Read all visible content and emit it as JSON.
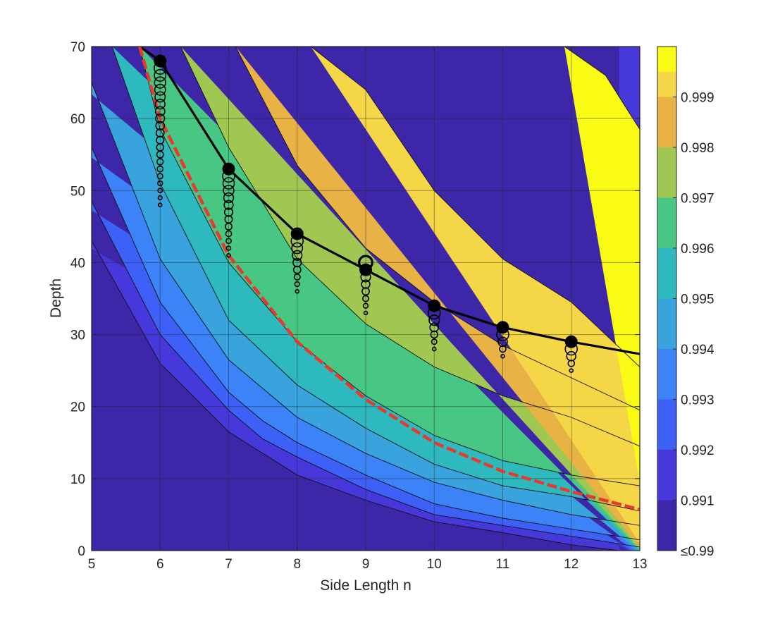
{
  "chart_data": {
    "type": "contour",
    "xlabel": "Side Length n",
    "ylabel": "Depth",
    "xlim": [
      5,
      13
    ],
    "ylim": [
      0,
      70
    ],
    "xticks": [
      "5",
      "6",
      "7",
      "8",
      "9",
      "10",
      "11",
      "12",
      "13"
    ],
    "yticks": [
      "0",
      "10",
      "20",
      "30",
      "40",
      "50",
      "60",
      "70"
    ],
    "grid": true,
    "colorbar": {
      "ticks": [
        "≤0.99",
        "0.991",
        "0.992",
        "0.993",
        "0.994",
        "0.995",
        "0.996",
        "0.997",
        "0.998",
        "0.999"
      ],
      "colors": [
        "#3d26a8",
        "#4638da",
        "#3d61f7",
        "#3b83f6",
        "#38a3dd",
        "#2db9bd",
        "#47c783",
        "#a1c753",
        "#e9b245",
        "#f5d647",
        "#f9fb15"
      ]
    },
    "contour_levels": [
      {
        "level": 0.991,
        "x": [
          5,
          6,
          7,
          7.5,
          8,
          9,
          10,
          11,
          12,
          12.7
        ],
        "y": [
          43,
          26,
          16.5,
          13.5,
          10.5,
          7,
          4,
          2.5,
          0.8,
          0
        ]
      },
      {
        "level": 0.992,
        "x": [
          5,
          6,
          7,
          7.5,
          8,
          9,
          10,
          11,
          12,
          13
        ],
        "y": [
          48.5,
          30,
          19.5,
          15.5,
          13,
          8.5,
          5,
          3.5,
          2,
          0.5
        ]
      },
      {
        "level": 0.993,
        "x": [
          5,
          6,
          7,
          7.5,
          8,
          9,
          10,
          11,
          12,
          13
        ],
        "y": [
          56,
          34.5,
          22,
          18,
          15,
          10.5,
          6.5,
          4.5,
          3,
          1.5
        ]
      },
      {
        "level": 0.994,
        "x": [
          5,
          6,
          7,
          8,
          9,
          10,
          11,
          12,
          13
        ],
        "y": [
          65,
          40.5,
          26.5,
          18.5,
          13.5,
          9.5,
          7,
          5,
          3.5
        ]
      },
      {
        "level": 0.995,
        "x": [
          5.3,
          6,
          7,
          8,
          9,
          10,
          11,
          12,
          13
        ],
        "y": [
          70,
          51,
          32,
          23,
          17,
          12,
          9,
          7.5,
          5.5
        ]
      },
      {
        "level": 0.996,
        "x": [
          5.7,
          6,
          7,
          8,
          9,
          10,
          11,
          12,
          13
        ],
        "y": [
          70,
          58.5,
          40,
          29,
          21.5,
          16,
          12.5,
          10.5,
          9
        ]
      },
      {
        "level": 0.997,
        "x": [
          6.3,
          7,
          8,
          9,
          10,
          11,
          12,
          13
        ],
        "y": [
          70,
          56,
          40.5,
          31.5,
          25.5,
          21.5,
          18.5,
          14.5
        ]
      },
      {
        "level": 0.998,
        "x": [
          7.1,
          8,
          9,
          10,
          11,
          12,
          13
        ],
        "y": [
          70,
          53.5,
          42,
          34.5,
          28.5,
          24,
          19.5
        ]
      },
      {
        "level": 0.9985,
        "x": [
          8.2,
          9,
          10,
          11,
          12,
          13
        ],
        "y": [
          70,
          64,
          50,
          40.5,
          34.5,
          25.5
        ]
      },
      {
        "level": 0.999,
        "x": [
          11.9,
          12.5,
          13
        ],
        "y": [
          70,
          66,
          58.5
        ]
      }
    ],
    "series": [
      {
        "style": "black-solid",
        "x": [
          5.7,
          6,
          7,
          8,
          9,
          10,
          11,
          12,
          13
        ],
        "y": [
          70,
          68,
          53,
          44,
          39,
          34,
          31,
          29,
          27.3
        ]
      },
      {
        "style": "red-dashed",
        "x": [
          5.7,
          6,
          7,
          8,
          9,
          10,
          11,
          12,
          13
        ],
        "y": [
          70,
          60,
          41,
          29,
          21,
          15,
          11,
          8.2,
          5.7
        ]
      }
    ],
    "optimal_points": {
      "x": [
        6,
        7,
        8,
        9,
        10,
        11,
        12
      ],
      "y": [
        68,
        53,
        44,
        39,
        34,
        31,
        29
      ]
    },
    "marker_columns": [
      {
        "x": 6,
        "y_top": 67,
        "y_bottom": 48
      },
      {
        "x": 7,
        "y_top": 52,
        "y_bottom": 41
      },
      {
        "x": 8,
        "y_top": 43,
        "y_bottom": 36
      },
      {
        "x": 9,
        "y_top": 40,
        "y_bottom": 33
      },
      {
        "x": 10,
        "y_top": 33,
        "y_bottom": 28
      },
      {
        "x": 11,
        "y_top": 30,
        "y_bottom": 27
      },
      {
        "x": 12,
        "y_top": 28,
        "y_bottom": 25
      }
    ]
  }
}
